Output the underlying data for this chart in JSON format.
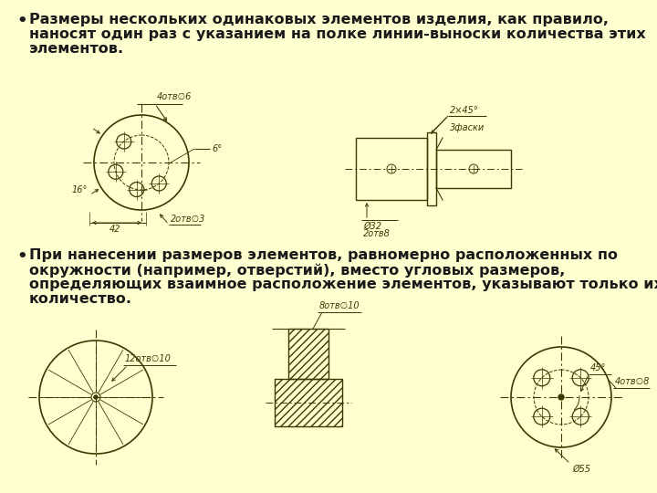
{
  "bg_color": "#FFFFD0",
  "text_color": "#1a1a1a",
  "drawing_color": "#3a3a00",
  "bullet1_line1": "Размеры нескольких одинаковых элементов изделия, как правило,",
  "bullet1_line2": "наносят один раз с указанием на полке линии-выноски количества этих",
  "bullet1_line3": "элементов.",
  "bullet2_line1": "При нанесении размеров элементов, равномерно расположенных по",
  "bullet2_line2": "окружности (например, отверстий), вместо угловых размеров,",
  "bullet2_line3": "определяющих взаимное расположение элементов, указывают только их",
  "bullet2_line4": "количество.",
  "font_size_text": 11.5,
  "font_size_annot": 7.0
}
